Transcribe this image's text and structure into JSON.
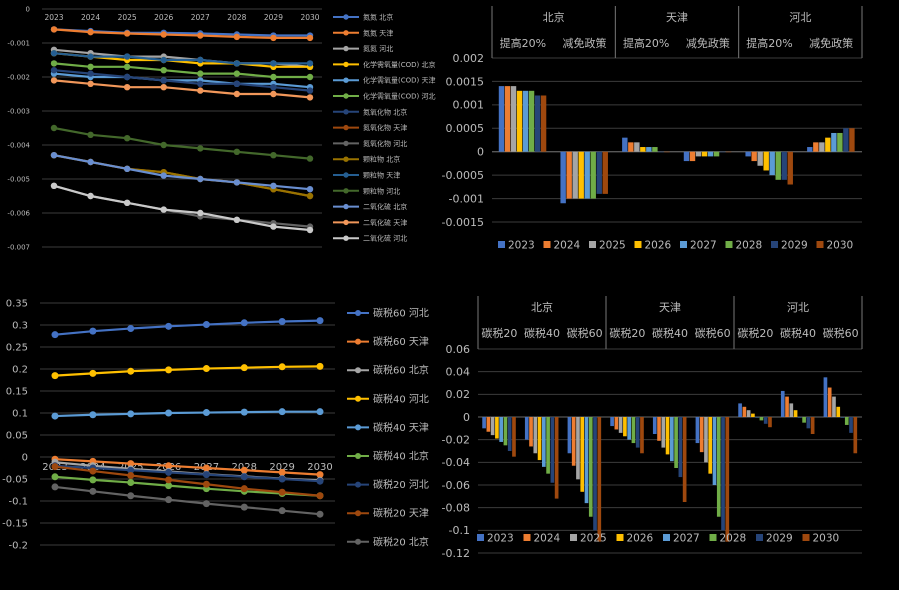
{
  "chart_data": [
    {
      "type": "line",
      "x": [
        "2023",
        "2024",
        "2025",
        "2026",
        "2027",
        "2028",
        "2029",
        "2030"
      ],
      "ylim": [
        -0.007,
        0
      ],
      "yticks": [
        {
          "v": 0,
          "label": "0"
        },
        {
          "v": -0.001,
          "label": "-0.001"
        },
        {
          "v": -0.002,
          "label": "-0.002"
        },
        {
          "v": -0.003,
          "label": "-0.003"
        },
        {
          "v": -0.004,
          "label": "-0.004"
        },
        {
          "v": -0.005,
          "label": "-0.005"
        },
        {
          "v": -0.006,
          "label": "-0.006"
        },
        {
          "v": -0.007,
          "label": "-0.007"
        }
      ],
      "legend_position": "right",
      "series": [
        {
          "name": "氮氮 北京",
          "color": "#4472C4",
          "values": [
            -0.0006,
            -0.00065,
            -0.0007,
            -0.0007,
            -0.00072,
            -0.00075,
            -0.00078,
            -0.00078
          ]
        },
        {
          "name": "氮氮 天津",
          "color": "#ED7D31",
          "values": [
            -0.0006,
            -0.00068,
            -0.00072,
            -0.00075,
            -0.00078,
            -0.00082,
            -0.00085,
            -0.00085
          ]
        },
        {
          "name": "氮氮 河北",
          "color": "#A5A5A5",
          "values": [
            -0.0012,
            -0.0013,
            -0.0014,
            -0.0014,
            -0.0015,
            -0.0016,
            -0.0016,
            -0.0017
          ]
        },
        {
          "name": "化学需氧量(COD) 北京",
          "color": "#FFC000",
          "values": [
            -0.0013,
            -0.0014,
            -0.0015,
            -0.0015,
            -0.0016,
            -0.0016,
            -0.0017,
            -0.0017
          ]
        },
        {
          "name": "化学需氧量(COD) 天津",
          "color": "#5B9BD5",
          "values": [
            -0.0019,
            -0.002,
            -0.002,
            -0.0021,
            -0.0021,
            -0.0022,
            -0.0022,
            -0.0023
          ]
        },
        {
          "name": "化学需氧量(COD) 河北",
          "color": "#70AD47",
          "values": [
            -0.0016,
            -0.0017,
            -0.0017,
            -0.0018,
            -0.0019,
            -0.0019,
            -0.002,
            -0.002
          ]
        },
        {
          "name": "氮氧化物 北京",
          "color": "#264478",
          "values": [
            -0.0018,
            -0.0019,
            -0.002,
            -0.0021,
            -0.0022,
            -0.0022,
            -0.0023,
            -0.0024
          ]
        },
        {
          "name": "氮氧化物 天津",
          "color": "#9E480E",
          "values": [
            -0.0043,
            -0.0045,
            -0.0047,
            -0.0048,
            -0.005,
            -0.0051,
            -0.0053,
            -0.0055
          ]
        },
        {
          "name": "氮氧化物 河北",
          "color": "#636363",
          "values": [
            -0.0052,
            -0.0055,
            -0.0057,
            -0.0059,
            -0.0061,
            -0.0062,
            -0.0063,
            -0.0064
          ]
        },
        {
          "name": "颗粒物 北京",
          "color": "#997300",
          "values": [
            -0.0043,
            -0.0045,
            -0.0047,
            -0.0048,
            -0.005,
            -0.0051,
            -0.0053,
            -0.0055
          ]
        },
        {
          "name": "颗粒物 天津",
          "color": "#255E91",
          "values": [
            -0.0013,
            -0.0014,
            -0.0014,
            -0.0015,
            -0.0015,
            -0.0016,
            -0.0016,
            -0.0016
          ]
        },
        {
          "name": "颗粒物 河北",
          "color": "#43682B",
          "values": [
            -0.0035,
            -0.0037,
            -0.0038,
            -0.004,
            -0.0041,
            -0.0042,
            -0.0043,
            -0.0044
          ]
        },
        {
          "name": "二氧化硫 北京",
          "color": "#698ED0",
          "values": [
            -0.0043,
            -0.0045,
            -0.0047,
            -0.0049,
            -0.005,
            -0.0051,
            -0.0052,
            -0.0053
          ]
        },
        {
          "name": "二氧化硫 天津",
          "color": "#F1975A",
          "values": [
            -0.0021,
            -0.0022,
            -0.0023,
            -0.0023,
            -0.0024,
            -0.0025,
            -0.0025,
            -0.0026
          ]
        },
        {
          "name": "二氧化硫 河北",
          "color": "#C9C9C9",
          "values": [
            -0.0052,
            -0.0055,
            -0.0057,
            -0.0059,
            -0.006,
            -0.0062,
            -0.0064,
            -0.0065
          ]
        }
      ]
    },
    {
      "type": "bar",
      "groups": [
        {
          "name": "北京",
          "subs": [
            "提高20%",
            "减免政策"
          ]
        },
        {
          "name": "天津",
          "subs": [
            "提高20%",
            "减免政策"
          ]
        },
        {
          "name": "河北",
          "subs": [
            "提高20%",
            "减免政策"
          ]
        }
      ],
      "ylim": [
        -0.0015,
        0.002
      ],
      "yticks": [
        {
          "v": 0.002,
          "label": "0.002"
        },
        {
          "v": 0.0015,
          "label": "0.0015"
        },
        {
          "v": 0.001,
          "label": "0.001"
        },
        {
          "v": 0.0005,
          "label": "0.0005"
        },
        {
          "v": 0,
          "label": "0"
        },
        {
          "v": -0.0005,
          "label": "-0.0005"
        },
        {
          "v": -0.001,
          "label": "-0.001"
        },
        {
          "v": -0.0015,
          "label": "-0.0015"
        }
      ],
      "legend_position": "bottom",
      "series": [
        {
          "name": "2023",
          "color": "#4472C4",
          "values": [
            0.0014,
            -0.0011,
            0.0003,
            -0.0002,
            -0.0001,
            0.0001
          ]
        },
        {
          "name": "2024",
          "color": "#ED7D31",
          "values": [
            0.0014,
            -0.001,
            0.0002,
            -0.0002,
            -0.0002,
            0.0002
          ]
        },
        {
          "name": "2025",
          "color": "#A5A5A5",
          "values": [
            0.0014,
            -0.001,
            0.0002,
            -0.0001,
            -0.0003,
            0.0002
          ]
        },
        {
          "name": "2026",
          "color": "#FFC000",
          "values": [
            0.0013,
            -0.001,
            0.0001,
            -0.0001,
            -0.0004,
            0.0003
          ]
        },
        {
          "name": "2027",
          "color": "#5B9BD5",
          "values": [
            0.0013,
            -0.001,
            0.0001,
            -0.0001,
            -0.0005,
            0.0004
          ]
        },
        {
          "name": "2028",
          "color": "#70AD47",
          "values": [
            0.0013,
            -0.001,
            0.0001,
            -0.0001,
            -0.0006,
            0.0004
          ]
        },
        {
          "name": "2029",
          "color": "#264478",
          "values": [
            0.0012,
            -0.0009,
            0.0,
            0.0,
            -0.0006,
            0.0005
          ]
        },
        {
          "name": "2030",
          "color": "#9E480E",
          "values": [
            0.0012,
            -0.0009,
            0.0,
            0.0,
            -0.0007,
            0.0005
          ]
        }
      ]
    },
    {
      "type": "line",
      "x": [
        "2023",
        "2024",
        "2025",
        "2026",
        "2027",
        "2028",
        "2029",
        "2030"
      ],
      "ylim": [
        -0.2,
        0.35
      ],
      "yticks": [
        {
          "v": 0.35,
          "label": "0.35"
        },
        {
          "v": 0.3,
          "label": "0.3"
        },
        {
          "v": 0.25,
          "label": "0.25"
        },
        {
          "v": 0.2,
          "label": "0.2"
        },
        {
          "v": 0.15,
          "label": "0.15"
        },
        {
          "v": 0.1,
          "label": "0.1"
        },
        {
          "v": 0.05,
          "label": "0.05"
        },
        {
          "v": 0,
          "label": "0"
        },
        {
          "v": -0.05,
          "label": "-0.05"
        },
        {
          "v": -0.1,
          "label": "-0.1"
        },
        {
          "v": -0.15,
          "label": "-0.15"
        },
        {
          "v": -0.2,
          "label": "-0.2"
        }
      ],
      "legend_position": "right",
      "series": [
        {
          "name": "碳税60 河北",
          "color": "#4472C4",
          "values": [
            0.278,
            0.286,
            0.292,
            0.297,
            0.301,
            0.305,
            0.308,
            0.31
          ]
        },
        {
          "name": "碳税60 天津",
          "color": "#ED7D31",
          "values": [
            -0.005,
            -0.01,
            -0.015,
            -0.02,
            -0.025,
            -0.03,
            -0.035,
            -0.04
          ]
        },
        {
          "name": "碳税60 北京",
          "color": "#A5A5A5",
          "values": [
            -0.012,
            -0.02,
            -0.027,
            -0.033,
            -0.039,
            -0.044,
            -0.049,
            -0.053
          ]
        },
        {
          "name": "碳税40 河北",
          "color": "#FFC000",
          "values": [
            0.185,
            0.19,
            0.195,
            0.198,
            0.201,
            0.203,
            0.205,
            0.206
          ]
        },
        {
          "name": "碳税40 天津",
          "color": "#5B9BD5",
          "values": [
            0.093,
            0.096,
            0.098,
            0.1,
            0.101,
            0.102,
            0.103,
            0.103
          ]
        },
        {
          "name": "碳税40 北京",
          "color": "#70AD47",
          "values": [
            -0.045,
            -0.052,
            -0.058,
            -0.065,
            -0.072,
            -0.078,
            -0.083,
            -0.088
          ]
        },
        {
          "name": "碳税20 河北",
          "color": "#264478",
          "values": [
            -0.02,
            -0.025,
            -0.03,
            -0.035,
            -0.04,
            -0.045,
            -0.05,
            -0.055
          ]
        },
        {
          "name": "碳税20 天津",
          "color": "#9E480E",
          "values": [
            -0.022,
            -0.032,
            -0.042,
            -0.052,
            -0.062,
            -0.072,
            -0.08,
            -0.088
          ]
        },
        {
          "name": "碳税20 北京",
          "color": "#636363",
          "values": [
            -0.068,
            -0.078,
            -0.088,
            -0.097,
            -0.106,
            -0.114,
            -0.122,
            -0.13
          ]
        }
      ]
    },
    {
      "type": "bar",
      "groups": [
        {
          "name": "北京",
          "subs": [
            "碳税20",
            "碳税40",
            "碳税60"
          ]
        },
        {
          "name": "天津",
          "subs": [
            "碳税20",
            "碳税40",
            "碳税60"
          ]
        },
        {
          "name": "河北",
          "subs": [
            "碳税20",
            "碳税40",
            "碳税60"
          ]
        }
      ],
      "ylim": [
        -0.12,
        0.06
      ],
      "yticks": [
        {
          "v": 0.06,
          "label": "0.06"
        },
        {
          "v": 0.04,
          "label": "0.04"
        },
        {
          "v": 0.02,
          "label": "0.02"
        },
        {
          "v": 0,
          "label": "0"
        },
        {
          "v": -0.02,
          "label": "-0.02"
        },
        {
          "v": -0.04,
          "label": "-0.04"
        },
        {
          "v": -0.06,
          "label": "-0.06"
        },
        {
          "v": -0.08,
          "label": "-0.08"
        },
        {
          "v": -0.1,
          "label": "-0.1"
        },
        {
          "v": -0.12,
          "label": "-0.12"
        }
      ],
      "legend_position": "bottom",
      "series": [
        {
          "name": "2023",
          "color": "#4472C4",
          "values": [
            -0.01,
            -0.02,
            -0.032,
            -0.008,
            -0.015,
            -0.023,
            0.012,
            0.023,
            0.035
          ]
        },
        {
          "name": "2024",
          "color": "#ED7D31",
          "values": [
            -0.013,
            -0.026,
            -0.043,
            -0.011,
            -0.021,
            -0.031,
            0.009,
            0.018,
            0.026
          ]
        },
        {
          "name": "2025",
          "color": "#A5A5A5",
          "values": [
            -0.016,
            -0.032,
            -0.055,
            -0.014,
            -0.027,
            -0.04,
            0.006,
            0.012,
            0.018
          ]
        },
        {
          "name": "2026",
          "color": "#FFC000",
          "values": [
            -0.019,
            -0.038,
            -0.066,
            -0.017,
            -0.033,
            -0.05,
            0.003,
            0.006,
            0.009
          ]
        },
        {
          "name": "2027",
          "color": "#5B9BD5",
          "values": [
            -0.022,
            -0.044,
            -0.076,
            -0.02,
            -0.039,
            -0.06,
            0.0,
            0.0,
            0.0
          ]
        },
        {
          "name": "2028",
          "color": "#70AD47",
          "values": [
            -0.025,
            -0.05,
            -0.088,
            -0.023,
            -0.045,
            -0.088,
            -0.003,
            -0.005,
            -0.007
          ]
        },
        {
          "name": "2029",
          "color": "#264478",
          "values": [
            -0.03,
            -0.058,
            -0.1,
            -0.027,
            -0.053,
            -0.1,
            -0.006,
            -0.01,
            -0.014
          ]
        },
        {
          "name": "2030",
          "color": "#9E480E",
          "values": [
            -0.035,
            -0.072,
            -0.11,
            -0.032,
            -0.075,
            -0.11,
            -0.009,
            -0.015,
            -0.032
          ]
        }
      ]
    }
  ]
}
